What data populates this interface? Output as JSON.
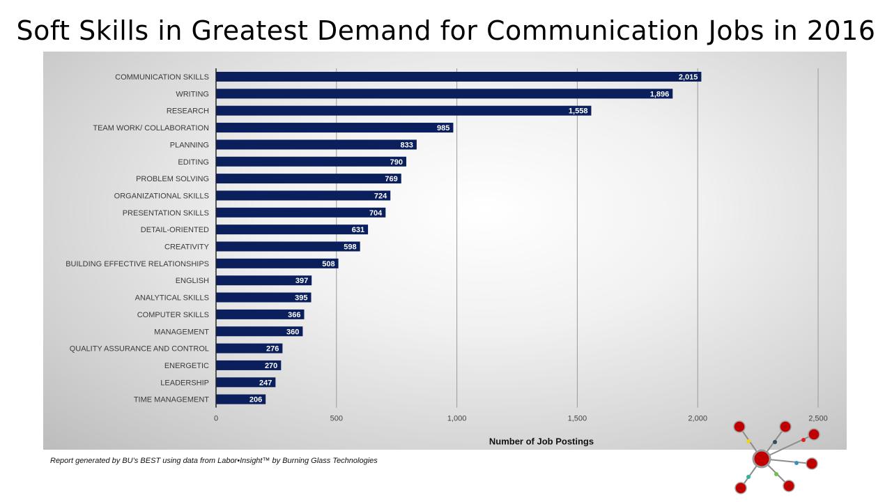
{
  "page": {
    "title": "Soft Skills in Greatest Demand for Communication Jobs in 2016",
    "footnote": "Report generated by BU’s BEST using data from Labor•Insight™ by Burning Glass Technologies"
  },
  "colors": {
    "bar": "#0a1f5c",
    "gridline": "#9a9a9a",
    "logo_node": "#c00000"
  },
  "chart_data": {
    "type": "bar",
    "orientation": "horizontal",
    "title": "Soft Skills in Greatest Demand for Communication Jobs in 2016",
    "xlabel": "Number of Job Postings",
    "ylabel": "",
    "xlim": [
      0,
      2500
    ],
    "xticks": [
      0,
      500,
      1000,
      1500,
      2000,
      2500
    ],
    "xtick_labels": [
      "0",
      "500",
      "1,000",
      "1,500",
      "2,000",
      "2,500"
    ],
    "grid": "vertical",
    "legend": "none",
    "categories": [
      "COMMUNICATION SKILLS",
      "WRITING",
      "RESEARCH",
      "TEAM WORK/ COLLABORATION",
      "PLANNING",
      "EDITING",
      "PROBLEM SOLVING",
      "ORGANIZATIONAL SKILLS",
      "PRESENTATION SKILLS",
      "DETAIL-ORIENTED",
      "CREATIVITY",
      "BUILDING EFFECTIVE RELATIONSHIPS",
      "ENGLISH",
      "ANALYTICAL SKILLS",
      "COMPUTER SKILLS",
      "MANAGEMENT",
      "QUALITY ASSURANCE AND CONTROL",
      "ENERGETIC",
      "LEADERSHIP",
      "TIME MANAGEMENT"
    ],
    "values": [
      2015,
      1896,
      1558,
      985,
      833,
      790,
      769,
      724,
      704,
      631,
      598,
      508,
      397,
      395,
      366,
      360,
      276,
      270,
      247,
      206
    ],
    "value_labels": [
      "2,015",
      "1,896",
      "1,558",
      "985",
      "833",
      "790",
      "769",
      "724",
      "704",
      "631",
      "598",
      "508",
      "397",
      "395",
      "366",
      "360",
      "276",
      "270",
      "247",
      "206"
    ]
  }
}
